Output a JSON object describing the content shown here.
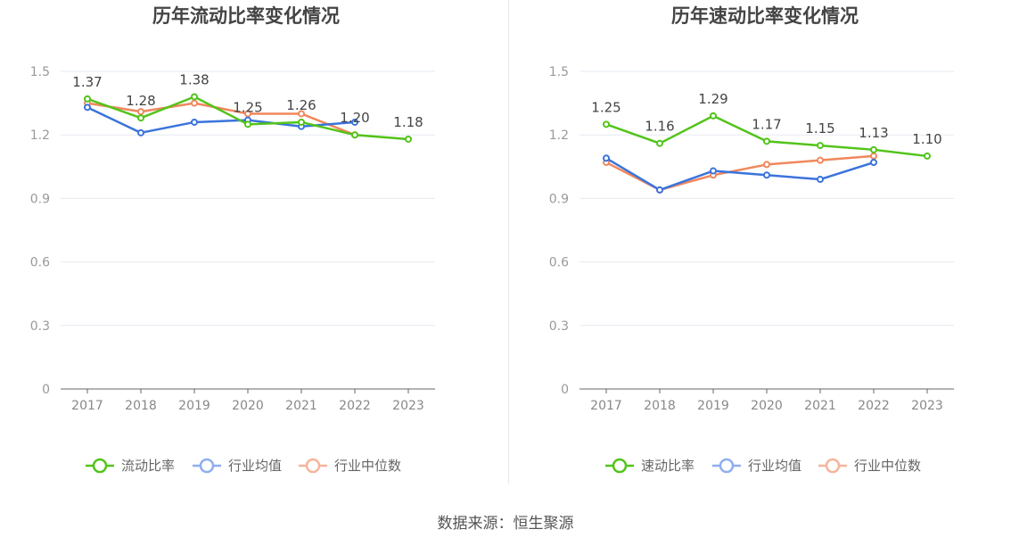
{
  "source_label": "数据来源：恒生聚源",
  "colors": {
    "main": "#52c41a",
    "avg": "#3b73dc",
    "median": "#f0875c",
    "avg_legend": "#8eaef0",
    "median_legend": "#f6b49a"
  },
  "chart_data": [
    {
      "type": "line",
      "title": "历年流动比率变化情况",
      "x": [
        "2017",
        "2018",
        "2019",
        "2020",
        "2021",
        "2022",
        "2023"
      ],
      "ylim": [
        0,
        1.5
      ],
      "yticks": [
        "0",
        "0.3",
        "0.6",
        "0.9",
        "1.2",
        "1.5"
      ],
      "grid": true,
      "legend_position": "bottom",
      "series": [
        {
          "name": "流动比率",
          "values": [
            1.37,
            1.28,
            1.38,
            1.25,
            1.26,
            1.2,
            1.18
          ],
          "labels": [
            "1.37",
            "1.28",
            "1.38",
            "1.25",
            "1.26",
            "1.20",
            "1.18"
          ]
        },
        {
          "name": "行业均值",
          "values": [
            1.33,
            1.21,
            1.26,
            1.27,
            1.24,
            1.26,
            null
          ]
        },
        {
          "name": "行业中位数",
          "values": [
            1.35,
            1.31,
            1.35,
            1.3,
            1.3,
            1.2,
            null
          ]
        }
      ]
    },
    {
      "type": "line",
      "title": "历年速动比率变化情况",
      "x": [
        "2017",
        "2018",
        "2019",
        "2020",
        "2021",
        "2022",
        "2023"
      ],
      "ylim": [
        0,
        1.5
      ],
      "yticks": [
        "0",
        "0.3",
        "0.6",
        "0.9",
        "1.2",
        "1.5"
      ],
      "grid": true,
      "legend_position": "bottom",
      "series": [
        {
          "name": "速动比率",
          "values": [
            1.25,
            1.16,
            1.29,
            1.17,
            1.15,
            1.13,
            1.1
          ],
          "labels": [
            "1.25",
            "1.16",
            "1.29",
            "1.17",
            "1.15",
            "1.13",
            "1.10"
          ]
        },
        {
          "name": "行业均值",
          "values": [
            1.09,
            0.94,
            1.03,
            1.01,
            0.99,
            1.07,
            null
          ]
        },
        {
          "name": "行业中位数",
          "values": [
            1.07,
            0.94,
            1.01,
            1.06,
            1.08,
            1.1,
            null
          ]
        }
      ]
    }
  ]
}
